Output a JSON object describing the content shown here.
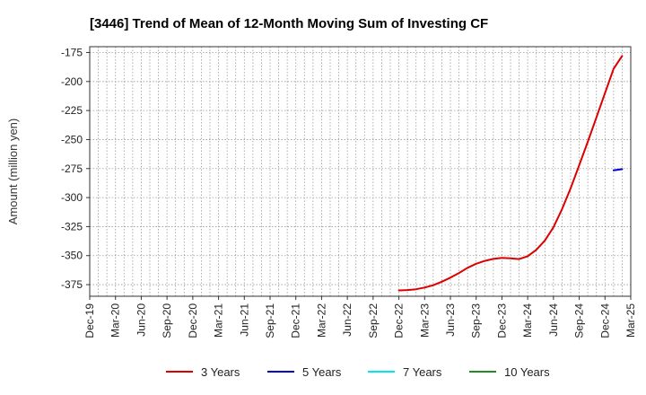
{
  "chart_data": {
    "type": "line",
    "title": "[3446]  Trend of Mean of 12-Month Moving Sum of Investing CF",
    "xlabel": "",
    "ylabel": "Amount (million yen)",
    "ylim": [
      -385,
      -170
    ],
    "yticks": [
      -175,
      -200,
      -225,
      -250,
      -275,
      -300,
      -325,
      -350,
      -375
    ],
    "x_tick_labels": [
      "Dec-19",
      "Mar-20",
      "Jun-20",
      "Sep-20",
      "Dec-20",
      "Mar-21",
      "Jun-21",
      "Sep-21",
      "Dec-21",
      "Mar-22",
      "Jun-22",
      "Sep-22",
      "Dec-22",
      "Mar-23",
      "Jun-23",
      "Sep-23",
      "Dec-23",
      "Mar-24",
      "Jun-24",
      "Sep-24",
      "Dec-24",
      "Mar-25"
    ],
    "x_start": "2019-12",
    "x_end": "2025-03",
    "grid": true,
    "legend_position": "bottom",
    "series": [
      {
        "name": "3 Years",
        "color": "#dd0000",
        "points": [
          [
            "2022-12",
            -380
          ],
          [
            "2023-01",
            -379.7
          ],
          [
            "2023-02",
            -379
          ],
          [
            "2023-03",
            -377.5
          ],
          [
            "2023-04",
            -375.5
          ],
          [
            "2023-05",
            -372.5
          ],
          [
            "2023-06",
            -369
          ],
          [
            "2023-07",
            -365
          ],
          [
            "2023-08",
            -360.5
          ],
          [
            "2023-09",
            -357
          ],
          [
            "2023-10",
            -354.5
          ],
          [
            "2023-11",
            -352.8
          ],
          [
            "2023-12",
            -352
          ],
          [
            "2024-01",
            -352.3
          ],
          [
            "2024-02",
            -353
          ],
          [
            "2024-03",
            -350.5
          ],
          [
            "2024-04",
            -345
          ],
          [
            "2024-05",
            -337
          ],
          [
            "2024-06",
            -325.5
          ],
          [
            "2024-07",
            -310
          ],
          [
            "2024-08",
            -292
          ],
          [
            "2024-09",
            -272
          ],
          [
            "2024-10",
            -252
          ],
          [
            "2024-11",
            -231
          ],
          [
            "2024-12",
            -210
          ],
          [
            "2025-01",
            -189
          ],
          [
            "2025-02",
            -178
          ]
        ]
      },
      {
        "name": "5 Years",
        "color": "#0000cc",
        "points": [
          [
            "2025-01",
            -276.5
          ],
          [
            "2025-02",
            -275.5
          ]
        ]
      },
      {
        "name": "7 Years",
        "color": "#00e5ee",
        "points": []
      },
      {
        "name": "10 Years",
        "color": "#228b22",
        "points": []
      }
    ]
  }
}
